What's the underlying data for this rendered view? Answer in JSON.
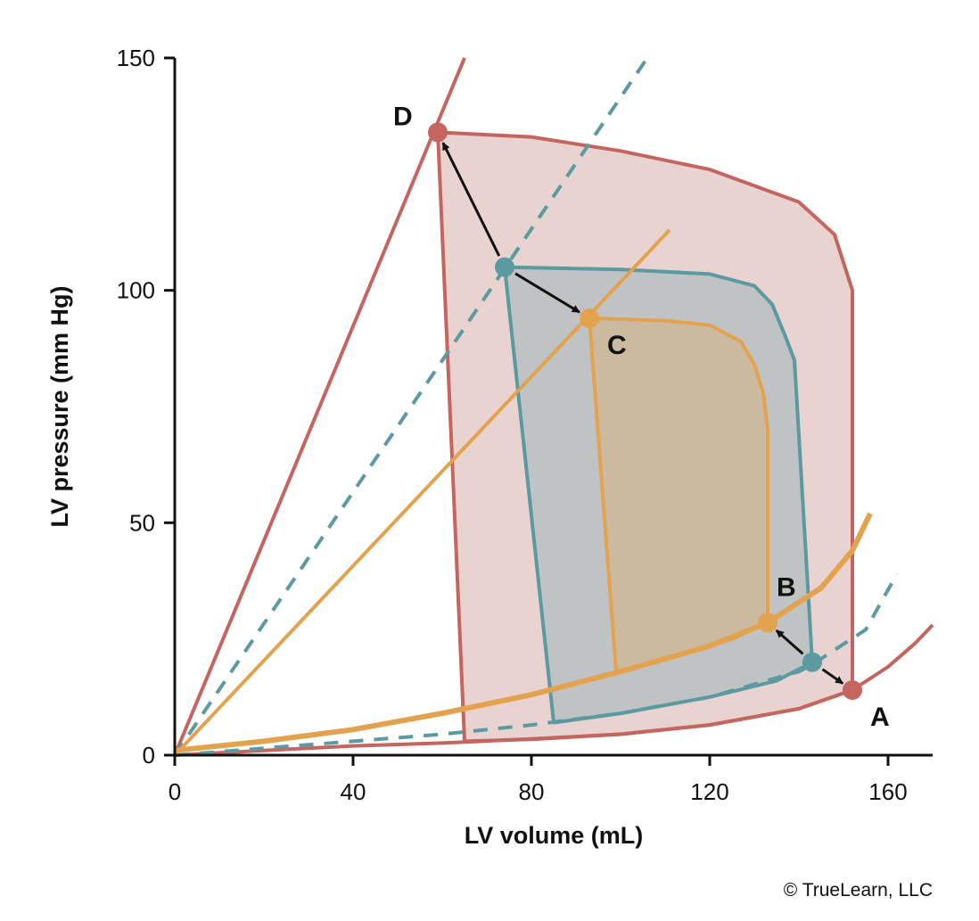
{
  "chart_data": {
    "type": "line",
    "title": "",
    "xlabel": "LV volume (mL)",
    "ylabel": "LV pressure (mm Hg)",
    "xlim": [
      0,
      170
    ],
    "ylim": [
      0,
      150
    ],
    "x_ticks": [
      0,
      40,
      80,
      120,
      160
    ],
    "y_ticks": [
      0,
      50,
      100,
      150
    ],
    "grid": false,
    "legend": "none",
    "colors": {
      "red": "#c4655f",
      "teal": "#5b9aa0",
      "orange": "#e3a24e",
      "red_fill": "#e9d3d0",
      "teal_fill": "#bfc3c3",
      "orange_fill": "#cbb9a0"
    },
    "series": [
      {
        "color_key": "red",
        "line_style": "solid",
        "esp_line": [
          [
            0,
            0
          ],
          [
            65,
            150
          ]
        ],
        "edpvr": [
          [
            0,
            0
          ],
          [
            20,
            1
          ],
          [
            40,
            2
          ],
          [
            60,
            2.6
          ],
          [
            80,
            3.5
          ],
          [
            100,
            4.5
          ],
          [
            120,
            6.5
          ],
          [
            140,
            10
          ],
          [
            152,
            14
          ],
          [
            160,
            19
          ],
          [
            166,
            24
          ],
          [
            170,
            28
          ]
        ],
        "loop": [
          [
            152,
            14
          ],
          [
            152,
            100
          ],
          [
            148,
            112
          ],
          [
            140,
            119
          ],
          [
            120,
            126
          ],
          [
            100,
            130
          ],
          [
            80,
            133
          ],
          [
            59,
            134
          ],
          [
            65,
            3
          ],
          [
            80,
            3.4
          ],
          [
            100,
            4.5
          ],
          [
            120,
            6.5
          ],
          [
            140,
            10
          ],
          [
            152,
            14
          ]
        ]
      },
      {
        "color_key": "teal",
        "line_style": "dashed",
        "esp_line": [
          [
            0,
            0
          ],
          [
            106,
            150
          ]
        ],
        "edpvr": [
          [
            0,
            0
          ],
          [
            20,
            1.5
          ],
          [
            40,
            3
          ],
          [
            60,
            4.5
          ],
          [
            80,
            6.5
          ],
          [
            100,
            9
          ],
          [
            120,
            12.5
          ],
          [
            140,
            18
          ],
          [
            143,
            19.5
          ],
          [
            155,
            27
          ],
          [
            162,
            39
          ]
        ],
        "loop": [
          [
            143,
            20
          ],
          [
            139,
            85
          ],
          [
            137,
            90
          ],
          [
            134,
            97
          ],
          [
            130,
            101
          ],
          [
            120,
            103.5
          ],
          [
            100,
            104.5
          ],
          [
            74,
            105
          ],
          [
            85,
            7
          ],
          [
            100,
            9
          ],
          [
            120,
            12.5
          ],
          [
            135,
            16
          ],
          [
            143,
            20
          ]
        ]
      },
      {
        "color_key": "orange",
        "line_style": "solid",
        "esp_line": [
          [
            0,
            0
          ],
          [
            111,
            113
          ]
        ],
        "edpvr": [
          [
            0,
            1
          ],
          [
            20,
            3
          ],
          [
            40,
            5.5
          ],
          [
            60,
            9
          ],
          [
            80,
            13
          ],
          [
            100,
            18
          ],
          [
            120,
            23.5
          ],
          [
            133,
            28.5
          ],
          [
            145,
            36
          ],
          [
            152,
            44
          ],
          [
            156,
            52
          ]
        ],
        "loop": [
          [
            133,
            28.5
          ],
          [
            133,
            70
          ],
          [
            132,
            78
          ],
          [
            130,
            84
          ],
          [
            127,
            89
          ],
          [
            120,
            92.5
          ],
          [
            110,
            93.5
          ],
          [
            93,
            94
          ],
          [
            99,
            18
          ],
          [
            110,
            20.5
          ],
          [
            125,
            25
          ],
          [
            133,
            28.5
          ]
        ]
      }
    ],
    "points": [
      {
        "label": "A",
        "x": 152,
        "y": 14,
        "color_key": "red",
        "label_pos": "below-right"
      },
      {
        "label": "B",
        "x": 133,
        "y": 28.5,
        "color_key": "orange",
        "label_pos": "above-right"
      },
      {
        "label": "C",
        "x": 93,
        "y": 94,
        "color_key": "orange",
        "label_pos": "below-right"
      },
      {
        "label": "D",
        "x": 59,
        "y": 134,
        "color_key": "red",
        "label_pos": "left"
      },
      {
        "label": "",
        "x": 74,
        "y": 105,
        "color_key": "teal"
      },
      {
        "label": "",
        "x": 143,
        "y": 20,
        "color_key": "teal"
      }
    ],
    "arrows": [
      {
        "from": [
          74,
          105
        ],
        "to": [
          59,
          134
        ]
      },
      {
        "from": [
          74,
          105
        ],
        "to": [
          93,
          94
        ]
      },
      {
        "from": [
          143,
          20
        ],
        "to": [
          133,
          28.5
        ]
      },
      {
        "from": [
          143,
          20
        ],
        "to": [
          152,
          14
        ]
      }
    ]
  },
  "credit": "© TrueLearn, LLC"
}
